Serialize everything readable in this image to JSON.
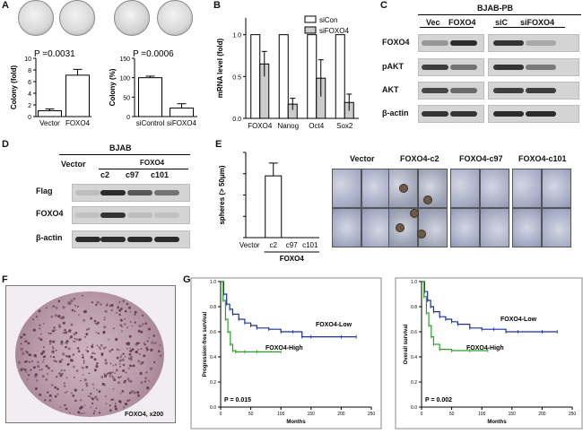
{
  "panels": {
    "A": {
      "label": "A",
      "left": {
        "pvalue": "P =0.0031",
        "ylabel": "Colony (fold)",
        "ticks": [
          "0",
          "2",
          "4",
          "6",
          "8",
          "10"
        ],
        "bars": [
          {
            "label": "Vector",
            "value": 1.0,
            "err": 0.3,
            "fill": "#ffffff"
          },
          {
            "label": "FOXO4",
            "value": 7.1,
            "err": 1.0,
            "fill": "#ffffff"
          }
        ],
        "ylim": [
          0,
          10
        ]
      },
      "right": {
        "pvalue": "P =0.0006",
        "ylabel": "Colony (%)",
        "ticks": [
          "0",
          "50",
          "100",
          "150"
        ],
        "bars": [
          {
            "label": "siControl",
            "value": 100,
            "err": 4,
            "fill": "#ffffff"
          },
          {
            "label": "siFOXO4",
            "value": 22,
            "err": 11,
            "fill": "#ffffff"
          }
        ],
        "ylim": [
          0,
          150
        ]
      }
    },
    "B": {
      "label": "B",
      "chart_data": {
        "type": "bar",
        "categories": [
          "FOXO4",
          "Nanog",
          "Oct4",
          "Sox2"
        ],
        "series": [
          {
            "name": "siCon",
            "values": [
              1.0,
              1.0,
              1.0,
              1.0
            ],
            "errors": [
              0,
              0,
              0,
              0
            ],
            "color": "#ffffff"
          },
          {
            "name": "siFOXO4",
            "values": [
              0.65,
              0.17,
              0.48,
              0.19
            ],
            "errors": [
              0.15,
              0.07,
              0.22,
              0.1
            ],
            "color": "#cccccc"
          }
        ],
        "ylabel": "mRNA level (fold)",
        "ticks": [
          "0.0",
          "0.5",
          "1.0"
        ],
        "ylim": [
          0,
          1.2
        ]
      }
    },
    "C": {
      "label": "C",
      "title": "BJAB-PB",
      "cols": [
        "Vec",
        "FOXO4",
        "siC",
        "siFOXO4"
      ],
      "rows": [
        "FOXO4",
        "pAKT",
        "AKT",
        "β-actin"
      ]
    },
    "D": {
      "label": "D",
      "title": "BJAB",
      "group": "FOXO4",
      "cols": [
        "Vector",
        "c2",
        "c97",
        "c101"
      ],
      "rows": [
        "Flag",
        "FOXO4",
        "β-actin"
      ]
    },
    "E": {
      "label": "E",
      "chart_data": {
        "type": "bar",
        "categories": [
          "Vector",
          "c2",
          "c97",
          "c101"
        ],
        "values": [
          0,
          29,
          0,
          0
        ],
        "errors": [
          0,
          6,
          0,
          0
        ],
        "ylabel": "spheres (> 50μm)",
        "ticks": [
          "0",
          "10",
          "20",
          "30",
          "40"
        ],
        "ylim": [
          0,
          40
        ],
        "group_label": "FOXO4"
      },
      "image_labels": [
        "Vector",
        "FOXO4-c2",
        "FOXO4-c97",
        "FOXO4-c101"
      ]
    },
    "F": {
      "label": "F",
      "caption": "FOXO4, x200"
    },
    "G": {
      "label": "G",
      "left": {
        "chart_data": {
          "type": "line",
          "ylabel": "Progression-free survival",
          "xlabel": "Months",
          "xticks": [
            "0",
            "50",
            "100",
            "150",
            "200",
            "250"
          ],
          "yticks": [
            "0.0",
            "0.2",
            "0.4",
            "0.6",
            "0.8",
            "1.0"
          ],
          "series": [
            {
              "name": "FOXO4-Low",
              "color": "#1c2f9a",
              "x": [
                0,
                5,
                10,
                15,
                20,
                30,
                40,
                50,
                60,
                80,
                100,
                120,
                135,
                150,
                200,
                225
              ],
              "y": [
                1.0,
                0.9,
                0.82,
                0.78,
                0.74,
                0.7,
                0.67,
                0.65,
                0.63,
                0.62,
                0.6,
                0.6,
                0.56,
                0.56,
                0.56,
                0.56
              ]
            },
            {
              "name": "FOXO4-High",
              "color": "#2ca02c",
              "x": [
                0,
                4,
                8,
                12,
                16,
                20,
                25,
                40,
                60,
                100
              ],
              "y": [
                1.0,
                0.85,
                0.7,
                0.6,
                0.5,
                0.45,
                0.44,
                0.44,
                0.44,
                0.44
              ]
            }
          ],
          "xlim": [
            0,
            250
          ],
          "ylim": [
            0,
            1.0
          ],
          "pvalue": "P = 0.015"
        }
      },
      "right": {
        "chart_data": {
          "type": "line",
          "ylabel": "Overall survival",
          "xlabel": "Months",
          "xticks": [
            "0",
            "50",
            "100",
            "150",
            "200",
            "250"
          ],
          "yticks": [
            "0.0",
            "0.2",
            "0.4",
            "0.6",
            "0.8",
            "1.0"
          ],
          "series": [
            {
              "name": "FOXO4-Low",
              "color": "#1c2f9a",
              "x": [
                0,
                5,
                10,
                15,
                20,
                30,
                40,
                50,
                60,
                80,
                100,
                120,
                140,
                160,
                200,
                225
              ],
              "y": [
                1.0,
                0.92,
                0.85,
                0.8,
                0.76,
                0.72,
                0.7,
                0.68,
                0.66,
                0.63,
                0.62,
                0.62,
                0.6,
                0.6,
                0.6,
                0.6
              ]
            },
            {
              "name": "FOXO4-High",
              "color": "#2ca02c",
              "x": [
                0,
                4,
                8,
                12,
                16,
                20,
                30,
                50,
                80,
                110
              ],
              "y": [
                1.0,
                0.88,
                0.75,
                0.65,
                0.56,
                0.5,
                0.46,
                0.45,
                0.45,
                0.45
              ]
            }
          ],
          "xlim": [
            0,
            250
          ],
          "ylim": [
            0,
            1.0
          ],
          "pvalue": "P = 0.002"
        }
      }
    }
  }
}
